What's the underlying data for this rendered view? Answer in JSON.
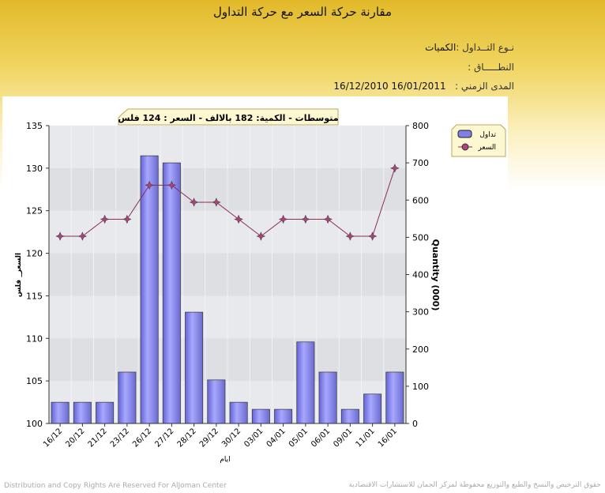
{
  "header": {
    "title": "مقارنة حركة السعر مع حركة التداول",
    "trade_type_label": "نـوع التــداول :",
    "trade_type_value": "الكميات",
    "range_label": "النطـــــاق :",
    "period_label": "المدى الزمني :",
    "period_value": "16/01/2011 16/12/2010"
  },
  "chart_data": {
    "type": "bar+line",
    "annotation": "متوسطات - الكمية: 182 بالالف  - السعر : 124 فلس",
    "xlabel": "ايام",
    "ylabel_left": "السعر_ فلس",
    "ylabel_right": "Quantity (000)",
    "categories": [
      "16/12",
      "20/12",
      "21/12",
      "23/12",
      "26/12",
      "27/12",
      "28/12",
      "29/12",
      "30/12",
      "03/01",
      "04/01",
      "05/01",
      "06/01",
      "09/01",
      "11/01",
      "16/01"
    ],
    "ylim_left": [
      100,
      135
    ],
    "yticks_left": [
      100,
      105,
      110,
      115,
      120,
      125,
      130,
      135
    ],
    "ylim_right": [
      0,
      800
    ],
    "yticks_right": [
      0,
      100,
      200,
      300,
      400,
      500,
      600,
      700,
      800
    ],
    "legend_position": "top-right",
    "grid": true,
    "series": [
      {
        "name": "تداول",
        "type": "bar",
        "axis": "right",
        "color": "#7f7fe6",
        "values": [
          57,
          57,
          57,
          138,
          719,
          700,
          299,
          117,
          57,
          38,
          38,
          219,
          138,
          38,
          79,
          138
        ]
      },
      {
        "name": "السعر",
        "type": "line",
        "axis": "left",
        "color": "#8b2b5a",
        "values": [
          122,
          122,
          124,
          124,
          128,
          128,
          126,
          126,
          124,
          122,
          124,
          124,
          124,
          122,
          122,
          130
        ]
      }
    ]
  },
  "footer": {
    "en": "Distribution and Copy Rights Are Reserved For AlJoman Center",
    "ar": "حقوق الترخيص والنسخ والطبع والتوزيع محفوظة لمركز الجمان للاستشارات الاقتصادية"
  }
}
